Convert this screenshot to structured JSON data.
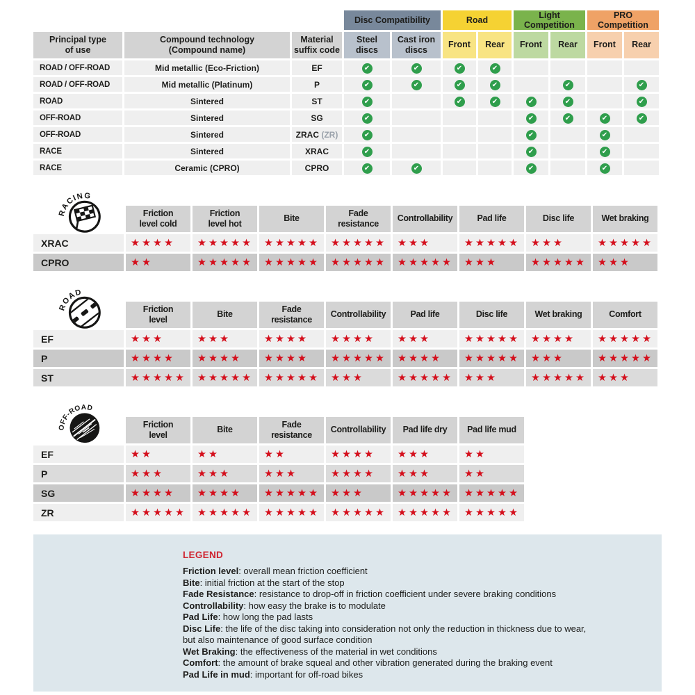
{
  "icons": {
    "check": "✔",
    "star": "★"
  },
  "colors": {
    "text": "#1d1d1b",
    "header_gray": "#d3d3d3",
    "row_shades": {
      "light": "#efefef",
      "mid": "#dbdbdb",
      "dark": "#c9c9c9"
    },
    "check_green": "#2f9e4c",
    "star_red": "#d40f1c",
    "legend_bg": "#dde7ec",
    "legend_title_red": "#cf2430"
  },
  "chart_data": [
    {
      "type": "table",
      "name": "compatibility-matrix",
      "groups": [
        {
          "label": "Disc Compatibility",
          "color": "#78889b",
          "sub_color": "#b8c1cc"
        },
        {
          "label": "Road",
          "color": "#f5d233",
          "sub_color": "#f8e483"
        },
        {
          "label": "Light Competition",
          "color": "#7ab34c",
          "sub_color": "#bdd9a1"
        },
        {
          "label": "PRO Competition",
          "color": "#efa266",
          "sub_color": "#f7d0ae"
        }
      ],
      "main_columns": [
        "Principal type\nof use",
        "Compound technology\n(Compound name)",
        "Material\nsuffix code"
      ],
      "sub_columns": [
        "Steel\ndiscs",
        "Cast iron\ndiscs",
        "Front",
        "Rear",
        "Front",
        "Rear",
        "Front",
        "Rear"
      ],
      "rows": [
        {
          "use": "ROAD / OFF-ROAD",
          "compound": "Mid metallic (Eco-Friction)",
          "code": "EF",
          "code_note": "",
          "checks": [
            1,
            1,
            1,
            1,
            0,
            0,
            0,
            0
          ]
        },
        {
          "use": "ROAD / OFF-ROAD",
          "compound": "Mid metallic (Platinum)",
          "code": "P",
          "code_note": "",
          "checks": [
            1,
            1,
            1,
            1,
            0,
            1,
            0,
            1
          ]
        },
        {
          "use": "ROAD",
          "compound": "Sintered",
          "code": "ST",
          "code_note": "",
          "checks": [
            1,
            0,
            1,
            1,
            1,
            1,
            0,
            1
          ]
        },
        {
          "use": "OFF-ROAD",
          "compound": "Sintered",
          "code": "SG",
          "code_note": "",
          "checks": [
            1,
            0,
            0,
            0,
            1,
            1,
            1,
            1
          ]
        },
        {
          "use": "OFF-ROAD",
          "compound": "Sintered",
          "code": "ZRAC",
          "code_note": "(ZR)",
          "checks": [
            1,
            0,
            0,
            0,
            1,
            0,
            1,
            0
          ]
        },
        {
          "use": "RACE",
          "compound": "Sintered",
          "code": "XRAC",
          "code_note": "",
          "checks": [
            1,
            0,
            0,
            0,
            1,
            0,
            1,
            0
          ]
        },
        {
          "use": "RACE",
          "compound": "Ceramic (CPRO)",
          "code": "CPRO",
          "code_note": "",
          "checks": [
            1,
            1,
            0,
            0,
            1,
            0,
            1,
            0
          ]
        }
      ]
    },
    {
      "type": "table",
      "name": "racing-ratings",
      "icon_label": "RACING",
      "star_max": 5,
      "columns": [
        "Friction\nlevel cold",
        "Friction\nlevel hot",
        "Bite",
        "Fade\nresistance",
        "Controllability",
        "Pad life",
        "Disc life",
        "Wet braking"
      ],
      "rows": [
        {
          "label": "XRAC",
          "shade": "light",
          "stars": [
            4,
            5,
            5,
            5,
            3,
            5,
            3,
            5
          ]
        },
        {
          "label": "CPRO",
          "shade": "dark",
          "stars": [
            2,
            5,
            5,
            5,
            5,
            3,
            5,
            3
          ]
        }
      ]
    },
    {
      "type": "table",
      "name": "road-ratings",
      "icon_label": "ROAD",
      "star_max": 5,
      "columns": [
        "Friction\nlevel",
        "Bite",
        "Fade\nresistance",
        "Controllability",
        "Pad life",
        "Disc life",
        "Wet braking",
        "Comfort"
      ],
      "rows": [
        {
          "label": "EF",
          "shade": "light",
          "stars": [
            3,
            3,
            4,
            4,
            3,
            5,
            4,
            5
          ]
        },
        {
          "label": "P",
          "shade": "dark",
          "stars": [
            4,
            4,
            4,
            5,
            4,
            5,
            3,
            5
          ]
        },
        {
          "label": "ST",
          "shade": "mid",
          "stars": [
            5,
            5,
            5,
            3,
            5,
            3,
            5,
            3
          ]
        }
      ]
    },
    {
      "type": "table",
      "name": "offroad-ratings",
      "icon_label": "OFF-ROAD",
      "star_max": 5,
      "columns": [
        "Friction\nlevel",
        "Bite",
        "Fade\nresistance",
        "Controllability",
        "Pad life dry",
        "Pad life mud"
      ],
      "rows": [
        {
          "label": "EF",
          "shade": "light",
          "stars": [
            2,
            2,
            2,
            4,
            3,
            2
          ]
        },
        {
          "label": "P",
          "shade": "mid",
          "stars": [
            3,
            3,
            3,
            4,
            3,
            2
          ]
        },
        {
          "label": "SG",
          "shade": "dark",
          "stars": [
            4,
            4,
            5,
            3,
            5,
            5
          ]
        },
        {
          "label": "ZR",
          "shade": "light",
          "stars": [
            5,
            5,
            5,
            5,
            5,
            5
          ]
        }
      ]
    }
  ],
  "legend": {
    "title": "LEGEND",
    "lines": [
      {
        "term": "Friction level",
        "text": ": overall mean friction coefficient"
      },
      {
        "term": "Bite",
        "text": ": initial friction at the start of the stop"
      },
      {
        "term": "Fade Resistance",
        "text": ": resistance to drop-off in friction coefficient under severe braking conditions"
      },
      {
        "term": "Controllability",
        "text": ": how easy the brake is to modulate"
      },
      {
        "term": "Pad Life",
        "text": ": how long the pad lasts"
      },
      {
        "term": "Disc Life",
        "text": ": the life of the disc taking into consideration not only the reduction in thickness due to wear,"
      },
      {
        "term": "",
        "text": "but also maintenance of good surface condition"
      },
      {
        "term": "Wet Braking",
        "text": ": the effectiveness of the material in wet conditions"
      },
      {
        "term": "Comfort",
        "text": ": the amount of brake squeal and other vibration generated during the braking event"
      },
      {
        "term": "Pad Life in mud",
        "text": ": important for off-road bikes"
      }
    ]
  }
}
